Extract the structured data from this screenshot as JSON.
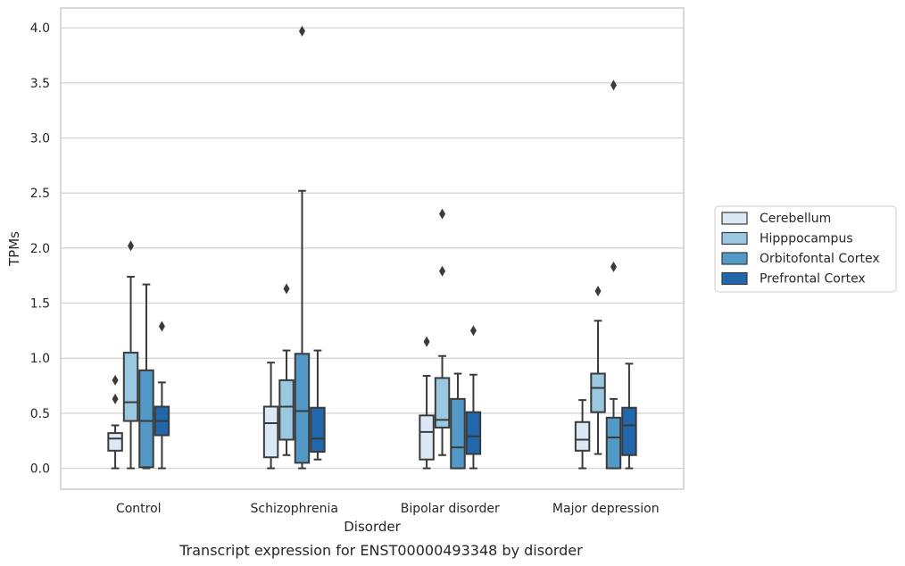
{
  "chart_data": {
    "type": "box",
    "caption": "Transcript expression for ENST00000493348 by disorder",
    "xlabel": "Disorder",
    "ylabel": "TPMs",
    "ylim": [
      -0.19,
      4.18
    ],
    "yticks": [
      0.0,
      0.5,
      1.0,
      1.5,
      2.0,
      2.5,
      3.0,
      3.5,
      4.0
    ],
    "ytick_labels": [
      "0.0",
      "0.5",
      "1.0",
      "1.5",
      "2.0",
      "2.5",
      "3.0",
      "3.5",
      "4.0"
    ],
    "grid": "horizontal",
    "legend_position": "center-right outside",
    "categories": [
      "Control",
      "Schizophrenia",
      "Bipolar disorder",
      "Major depression"
    ],
    "series": [
      {
        "name": "Cerebellum",
        "color": "#dbe9f6",
        "boxes": [
          {
            "whisker_low": 0.0,
            "q1": 0.16,
            "median": 0.27,
            "q3": 0.32,
            "whisker_high": 0.39,
            "outliers": [
              0.8,
              0.63
            ]
          },
          {
            "whisker_low": 0.0,
            "q1": 0.1,
            "median": 0.41,
            "q3": 0.56,
            "whisker_high": 0.96,
            "outliers": []
          },
          {
            "whisker_low": 0.0,
            "q1": 0.08,
            "median": 0.33,
            "q3": 0.48,
            "whisker_high": 0.84,
            "outliers": [
              1.15
            ]
          },
          {
            "whisker_low": 0.0,
            "q1": 0.16,
            "median": 0.26,
            "q3": 0.42,
            "whisker_high": 0.62,
            "outliers": []
          }
        ]
      },
      {
        "name": "Hipppocampus",
        "color": "#9ac8e0",
        "boxes": [
          {
            "whisker_low": 0.0,
            "q1": 0.43,
            "median": 0.6,
            "q3": 1.05,
            "whisker_high": 1.74,
            "outliers": [
              2.02
            ]
          },
          {
            "whisker_low": 0.12,
            "q1": 0.26,
            "median": 0.56,
            "q3": 0.8,
            "whisker_high": 1.07,
            "outliers": [
              1.63
            ]
          },
          {
            "whisker_low": 0.12,
            "q1": 0.37,
            "median": 0.44,
            "q3": 0.82,
            "whisker_high": 1.02,
            "outliers": [
              2.31,
              1.79
            ]
          },
          {
            "whisker_low": 0.13,
            "q1": 0.51,
            "median": 0.73,
            "q3": 0.86,
            "whisker_high": 1.34,
            "outliers": [
              1.61
            ]
          }
        ]
      },
      {
        "name": "Orbitofontal Cortex",
        "color": "#5299c8",
        "boxes": [
          {
            "whisker_low": 0.0,
            "q1": 0.01,
            "median": 0.43,
            "q3": 0.89,
            "whisker_high": 1.67,
            "outliers": []
          },
          {
            "whisker_low": 0.0,
            "q1": 0.05,
            "median": 0.52,
            "q3": 1.04,
            "whisker_high": 2.52,
            "outliers": [
              3.97
            ]
          },
          {
            "whisker_low": 0.0,
            "q1": 0.0,
            "median": 0.19,
            "q3": 0.63,
            "whisker_high": 0.86,
            "outliers": []
          },
          {
            "whisker_low": 0.0,
            "q1": 0.0,
            "median": 0.28,
            "q3": 0.46,
            "whisker_high": 0.63,
            "outliers": [
              3.48,
              1.83
            ]
          }
        ]
      },
      {
        "name": "Prefrontal Cortex",
        "color": "#2266ac",
        "boxes": [
          {
            "whisker_low": 0.0,
            "q1": 0.3,
            "median": 0.43,
            "q3": 0.56,
            "whisker_high": 0.78,
            "outliers": [
              1.29
            ]
          },
          {
            "whisker_low": 0.08,
            "q1": 0.15,
            "median": 0.27,
            "q3": 0.55,
            "whisker_high": 1.07,
            "outliers": []
          },
          {
            "whisker_low": 0.0,
            "q1": 0.13,
            "median": 0.29,
            "q3": 0.51,
            "whisker_high": 0.85,
            "outliers": [
              1.25
            ]
          },
          {
            "whisker_low": 0.0,
            "q1": 0.12,
            "median": 0.39,
            "q3": 0.55,
            "whisker_high": 0.95,
            "outliers": []
          }
        ]
      }
    ]
  }
}
